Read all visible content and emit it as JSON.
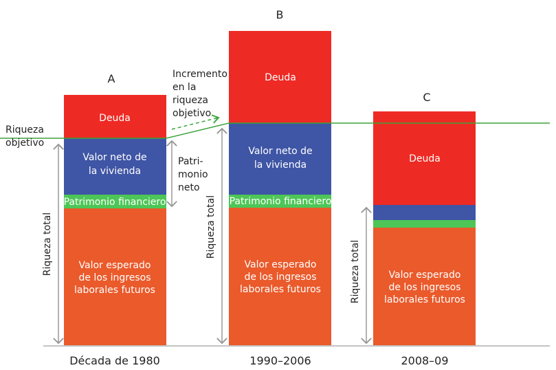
{
  "colors": {
    "debt": "#ee2a24",
    "housing": "#3f55a5",
    "financial": "#4dc657",
    "income": "#ea5a2b",
    "target": "#3aa33a"
  },
  "target_label": [
    "Riqueza",
    "objetivo"
  ],
  "increment_label": [
    "Incremento",
    "en la",
    "riqueza",
    "objetivo"
  ],
  "net_worth_label": [
    "Patri-",
    "monio",
    "neto"
  ],
  "total_wealth_label": "Riqueza total",
  "bars": [
    {
      "letter": "A",
      "period": "Década de 1980",
      "debt": "Deuda",
      "housing": [
        "Valor neto de",
        "la vivienda"
      ],
      "financial": "Patrimonio financiero",
      "income": [
        "Valor esperado",
        "de los ingresos",
        "laborales futuros"
      ]
    },
    {
      "letter": "B",
      "period": "1990–2006",
      "debt": "Deuda",
      "housing": [
        "Valor neto de",
        "la vivienda"
      ],
      "financial": "Patrimonio financiero",
      "income": [
        "Valor esperado",
        "de los ingresos",
        "laborales futuros"
      ]
    },
    {
      "letter": "C",
      "period": "2008–09",
      "debt": "Deuda",
      "income": [
        "Valor esperado",
        "de los ingresos",
        "laborales futuros"
      ]
    }
  ]
}
